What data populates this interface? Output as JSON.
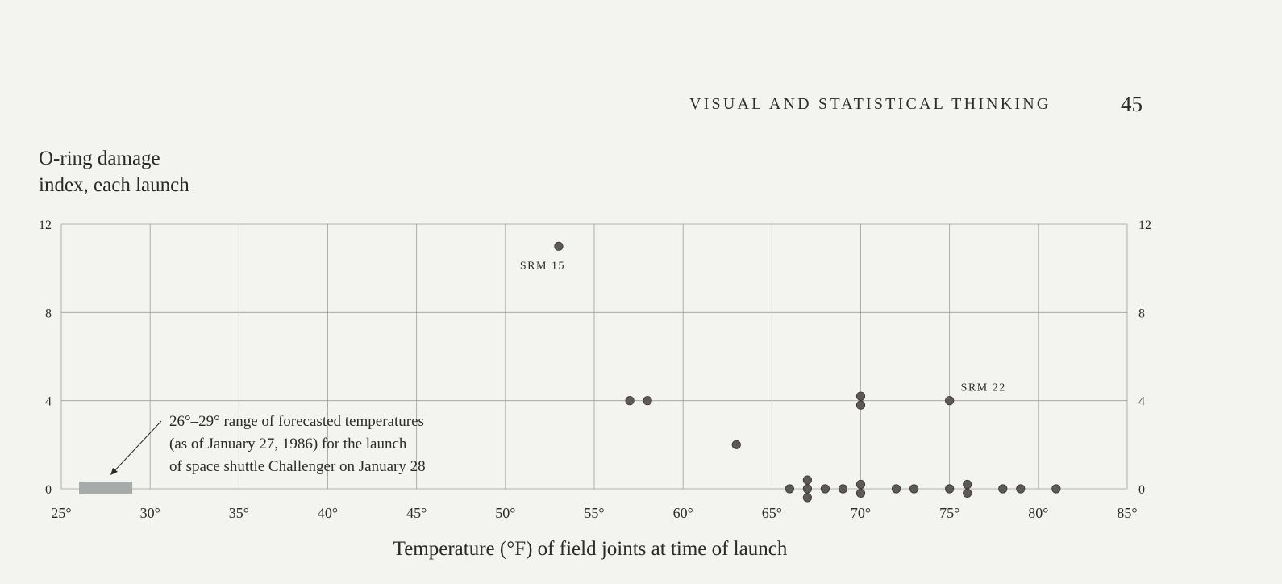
{
  "page": {
    "running_head": "VISUAL AND STATISTICAL THINKING",
    "page_number": "45"
  },
  "chart_data": {
    "type": "scatter",
    "ylabel_lines": [
      "O-ring damage",
      "index, each launch"
    ],
    "xlabel": "Temperature (°F) of field joints at time of launch",
    "xlim": [
      25,
      85
    ],
    "ylim": [
      0,
      12
    ],
    "x_tick_labels": [
      "25°",
      "30°",
      "35°",
      "40°",
      "45°",
      "50°",
      "55°",
      "60°",
      "65°",
      "70°",
      "75°",
      "80°",
      "85°"
    ],
    "x_tick_values": [
      25,
      30,
      35,
      40,
      45,
      50,
      55,
      60,
      65,
      70,
      75,
      80,
      85
    ],
    "y_tick_labels": [
      "0",
      "4",
      "8",
      "12"
    ],
    "y_tick_values": [
      0,
      4,
      8,
      12
    ],
    "grid": true,
    "points": [
      {
        "x": 53,
        "y": 11
      },
      {
        "x": 57,
        "y": 4
      },
      {
        "x": 58,
        "y": 4
      },
      {
        "x": 63,
        "y": 2
      },
      {
        "x": 66,
        "y": 0
      },
      {
        "x": 67,
        "y": 0.4
      },
      {
        "x": 67,
        "y": 0
      },
      {
        "x": 67,
        "y": -0.4
      },
      {
        "x": 68,
        "y": 0
      },
      {
        "x": 69,
        "y": 0
      },
      {
        "x": 70,
        "y": 4.2
      },
      {
        "x": 70,
        "y": 3.8
      },
      {
        "x": 70,
        "y": 0.2
      },
      {
        "x": 70,
        "y": -0.2
      },
      {
        "x": 72,
        "y": 0
      },
      {
        "x": 73,
        "y": 0
      },
      {
        "x": 75,
        "y": 4
      },
      {
        "x": 75,
        "y": 0
      },
      {
        "x": 76,
        "y": 0.2
      },
      {
        "x": 76,
        "y": -0.2
      },
      {
        "x": 78,
        "y": 0
      },
      {
        "x": 79,
        "y": 0
      },
      {
        "x": 81,
        "y": 0
      }
    ],
    "point_labels": [
      {
        "text": "SRM 15",
        "x": 53,
        "y": 11
      },
      {
        "text": "SRM 22",
        "x": 75,
        "y": 4
      }
    ],
    "forecast_range": {
      "from": 26,
      "to": 29
    },
    "annotation_lines": [
      "26°–29° range of forecasted temperatures",
      "(as of January 27, 1986) for the launch",
      "of space shuttle Challenger on January 28"
    ],
    "colors": {
      "point": "#5e5959",
      "grid": "#9c9c9c",
      "range_bar": "#a6aaa9",
      "background": "#f3f4ef"
    }
  }
}
